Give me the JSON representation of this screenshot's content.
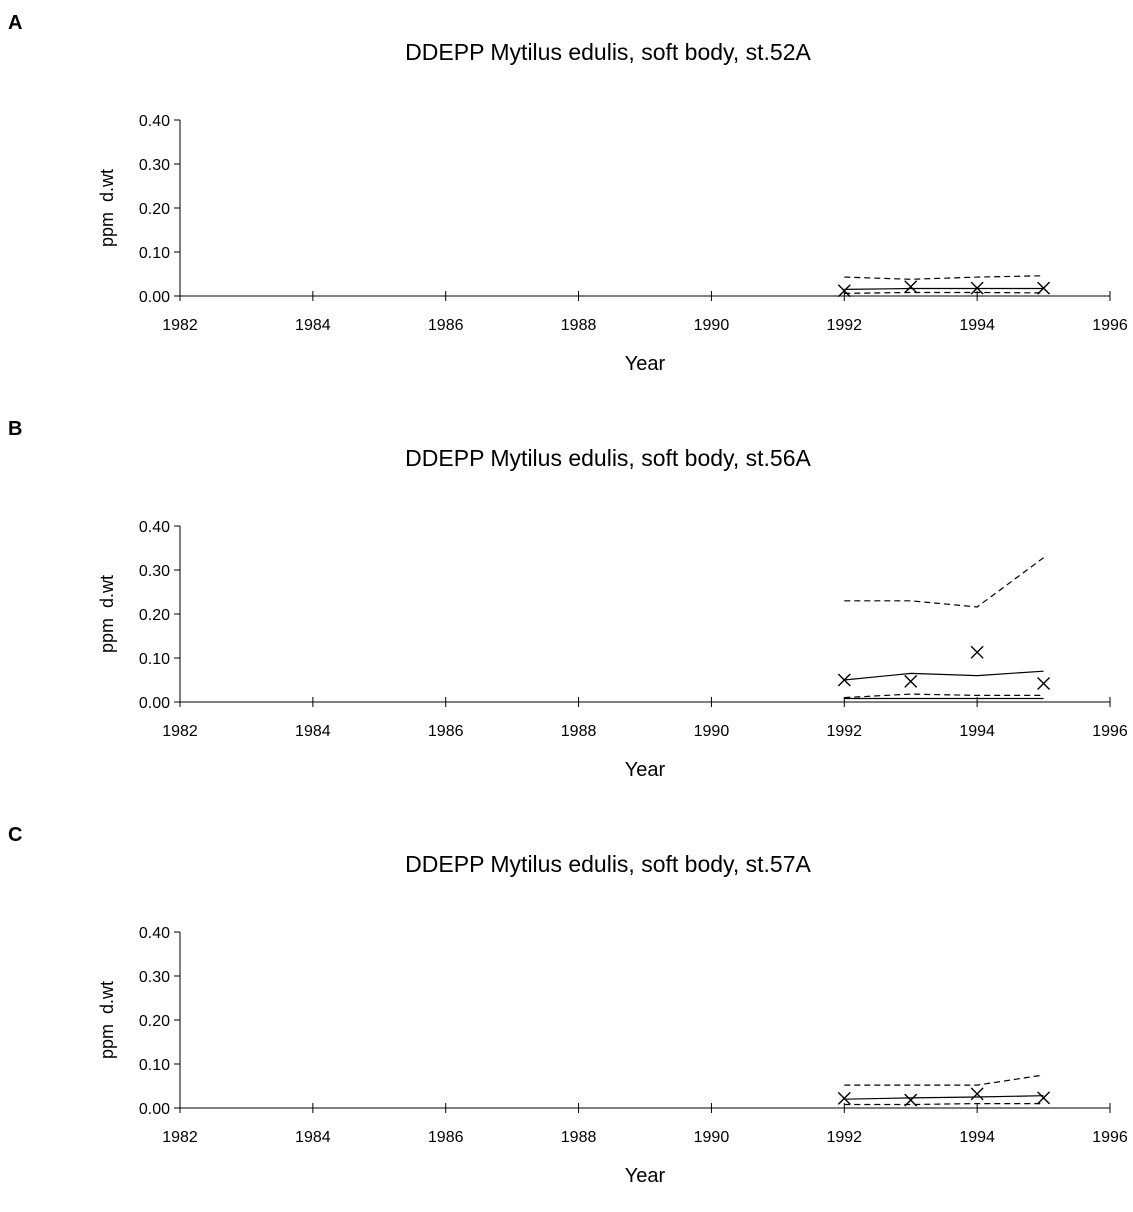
{
  "chart_data": [
    {
      "type": "line",
      "panel": "A",
      "title": "DDEPP Mytilus edulis, soft body, st.52A",
      "xlabel": "Year",
      "ylabel": "ppm  d.wt",
      "xlim": [
        1982,
        1996
      ],
      "ylim": [
        0,
        0.4
      ],
      "xticks": [
        "1982",
        "1984",
        "1986",
        "1988",
        "1990",
        "1992",
        "1994",
        "1996"
      ],
      "yticks": [
        "0.00",
        "0.10",
        "0.20",
        "0.30",
        "0.40"
      ],
      "points": {
        "x": [
          1992,
          1993,
          1994,
          1995
        ],
        "y": [
          0.012,
          0.021,
          0.018,
          0.018
        ]
      },
      "series": [
        {
          "style": "solid",
          "x": [
            1992,
            1993,
            1994,
            1995
          ],
          "y": [
            0.015,
            0.017,
            0.017,
            0.017
          ]
        },
        {
          "style": "dashed",
          "x": [
            1992,
            1993,
            1994,
            1995
          ],
          "y": [
            0.043,
            0.038,
            0.043,
            0.046
          ]
        },
        {
          "style": "dashed",
          "x": [
            1992,
            1993,
            1994,
            1995
          ],
          "y": [
            0.006,
            0.008,
            0.008,
            0.007
          ]
        }
      ],
      "grid": false
    },
    {
      "type": "line",
      "panel": "B",
      "title": "DDEPP Mytilus edulis, soft body, st.56A",
      "xlabel": "Year",
      "ylabel": "ppm  d.wt",
      "xlim": [
        1982,
        1996
      ],
      "ylim": [
        0,
        0.4
      ],
      "xticks": [
        "1982",
        "1984",
        "1986",
        "1988",
        "1990",
        "1992",
        "1994",
        "1996"
      ],
      "yticks": [
        "0.00",
        "0.10",
        "0.20",
        "0.30",
        "0.40"
      ],
      "points": {
        "x": [
          1992,
          1993,
          1994,
          1995
        ],
        "y": [
          0.05,
          0.047,
          0.113,
          0.042
        ]
      },
      "series": [
        {
          "style": "solid",
          "x": [
            1992,
            1993,
            1994,
            1995
          ],
          "y": [
            0.05,
            0.065,
            0.06,
            0.07
          ]
        },
        {
          "style": "dashed",
          "x": [
            1992,
            1993,
            1994,
            1995
          ],
          "y": [
            0.23,
            0.23,
            0.216,
            0.328
          ]
        },
        {
          "style": "dashed",
          "x": [
            1992,
            1993,
            1994,
            1995
          ],
          "y": [
            0.01,
            0.018,
            0.015,
            0.015
          ]
        },
        {
          "style": "solid",
          "x": [
            1992,
            1995
          ],
          "y": [
            0.008,
            0.008
          ]
        }
      ],
      "grid": false
    },
    {
      "type": "line",
      "panel": "C",
      "title": "DDEPP Mytilus edulis, soft body, st.57A",
      "xlabel": "Year",
      "ylabel": "ppm  d.wt",
      "xlim": [
        1982,
        1996
      ],
      "ylim": [
        0,
        0.4
      ],
      "xticks": [
        "1982",
        "1984",
        "1986",
        "1988",
        "1990",
        "1992",
        "1994",
        "1996"
      ],
      "yticks": [
        "0.00",
        "0.10",
        "0.20",
        "0.30",
        "0.40"
      ],
      "points": {
        "x": [
          1992,
          1993,
          1994,
          1995
        ],
        "y": [
          0.022,
          0.018,
          0.032,
          0.023
        ]
      },
      "series": [
        {
          "style": "solid",
          "x": [
            1992,
            1993,
            1994,
            1995
          ],
          "y": [
            0.02,
            0.023,
            0.025,
            0.028
          ]
        },
        {
          "style": "dashed",
          "x": [
            1992,
            1993,
            1994,
            1995
          ],
          "y": [
            0.052,
            0.052,
            0.052,
            0.075
          ]
        },
        {
          "style": "dashed",
          "x": [
            1992,
            1993,
            1994,
            1995
          ],
          "y": [
            0.008,
            0.008,
            0.01,
            0.01
          ]
        }
      ],
      "grid": false
    }
  ]
}
